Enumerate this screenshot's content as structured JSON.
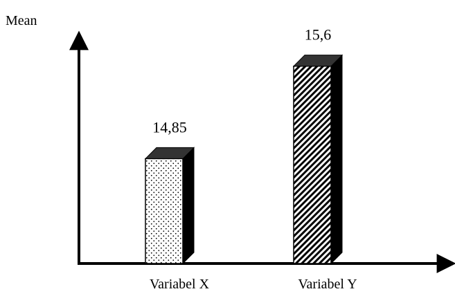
{
  "chart_data": {
    "type": "bar",
    "ylabel": "Mean",
    "categories": [
      "Variabel X",
      "Variabel Y"
    ],
    "values": [
      14.85,
      15.6
    ],
    "value_labels": [
      "14,85",
      "15,6"
    ],
    "ylim": [
      14.0,
      15.8
    ],
    "grid": false,
    "style": "3d",
    "fills": [
      "dotted",
      "diagonal-hatch"
    ],
    "colors": {
      "bar_top": "#333333",
      "bar_side": "#000000",
      "axis": "#000000"
    }
  }
}
